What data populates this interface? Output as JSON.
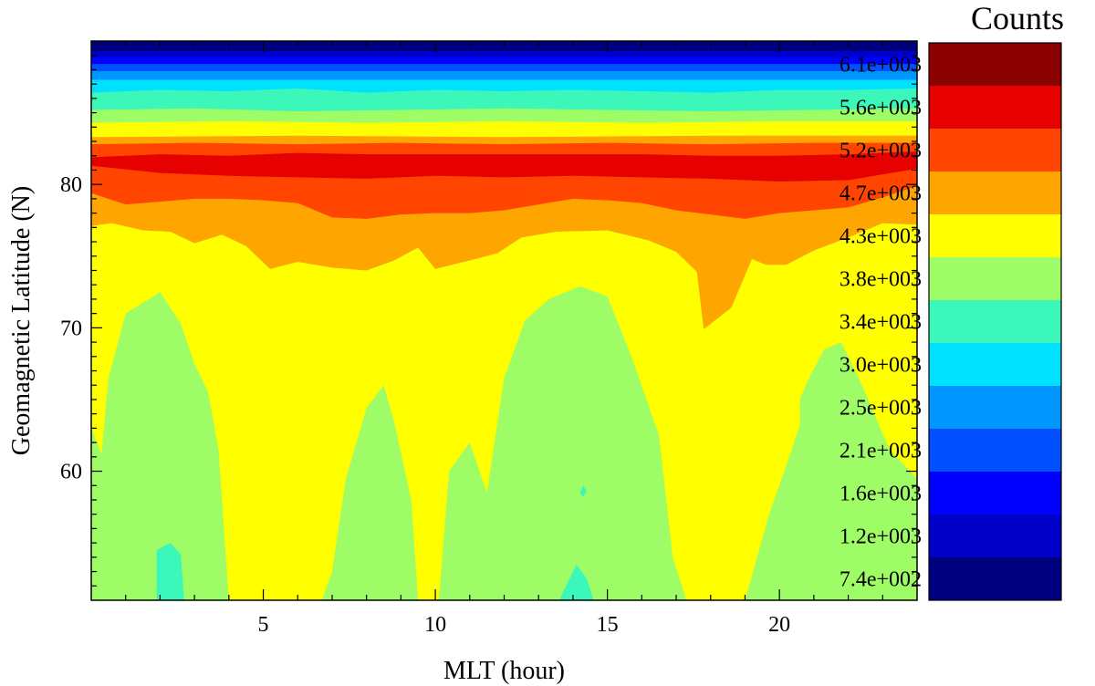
{
  "chart_data": {
    "type": "contour",
    "xlabel": "MLT (hour)",
    "ylabel": "Geomagnetic Latitude (N)",
    "xlim": [
      0,
      24
    ],
    "ylim": [
      51,
      90
    ],
    "x_ticks": [
      5,
      10,
      15,
      20
    ],
    "y_ticks": [
      60,
      70,
      80
    ],
    "grid": false,
    "colorbar": {
      "title": "Counts",
      "position": "right",
      "levels": [
        {
          "label": "7.4e+002",
          "color": "#00007f"
        },
        {
          "label": "1.2e+003",
          "color": "#0000c8"
        },
        {
          "label": "1.6e+003",
          "color": "#0000ff"
        },
        {
          "label": "2.1e+003",
          "color": "#0050ff"
        },
        {
          "label": "2.5e+003",
          "color": "#0095ff"
        },
        {
          "label": "3.0e+003",
          "color": "#00e1ff"
        },
        {
          "label": "3.4e+003",
          "color": "#3bf7b9"
        },
        {
          "label": "3.8e+003",
          "color": "#9efd66"
        },
        {
          "label": "4.3e+003",
          "color": "#ffff00"
        },
        {
          "label": "4.7e+003",
          "color": "#ffa500"
        },
        {
          "label": "5.2e+003",
          "color": "#ff4500"
        },
        {
          "label": "5.6e+003",
          "color": "#e60000"
        },
        {
          "label": "6.1e+003",
          "color": "#8b0000"
        }
      ]
    },
    "background_level": "3.8e+003",
    "bands": [
      {
        "level": "4.7e+003",
        "upper": [
          [
            0,
            89
          ],
          [
            24,
            89
          ]
        ],
        "lower": [
          [
            0,
            77.1
          ],
          [
            0.6,
            77.3
          ],
          [
            1.5,
            76.8
          ],
          [
            2.3,
            76.7
          ],
          [
            3,
            75.9
          ],
          [
            3.8,
            76.5
          ],
          [
            4.5,
            75.7
          ],
          [
            5.2,
            74.1
          ],
          [
            6,
            74.6
          ],
          [
            7,
            74.2
          ],
          [
            8,
            74
          ],
          [
            8.8,
            74.7
          ],
          [
            9.5,
            75.6
          ],
          [
            10,
            74.1
          ],
          [
            11,
            74.7
          ],
          [
            11.8,
            75.2
          ],
          [
            12.5,
            76.3
          ],
          [
            13.5,
            76.7
          ],
          [
            15,
            76.8
          ],
          [
            16.2,
            76.1
          ],
          [
            17,
            75.3
          ],
          [
            17.6,
            73.9
          ],
          [
            17.8,
            69.9
          ],
          [
            18.6,
            71.4
          ],
          [
            19.2,
            74.8
          ],
          [
            19.6,
            74.4
          ],
          [
            20.2,
            74.4
          ],
          [
            21,
            75.4
          ],
          [
            22,
            76.3
          ],
          [
            23,
            77.3
          ],
          [
            24,
            77.2
          ]
        ]
      },
      {
        "level": "5.2e+003",
        "upper": [
          [
            0,
            89
          ],
          [
            24,
            89
          ]
        ],
        "lower": [
          [
            0,
            79.4
          ],
          [
            1,
            78.6
          ],
          [
            2,
            78.8
          ],
          [
            3,
            79
          ],
          [
            4,
            79
          ],
          [
            5,
            78.9
          ],
          [
            6,
            78.7
          ],
          [
            7,
            77.7
          ],
          [
            8,
            77.6
          ],
          [
            9,
            77.9
          ],
          [
            10,
            78
          ],
          [
            11,
            78
          ],
          [
            12,
            78.2
          ],
          [
            13,
            78.6
          ],
          [
            14,
            79
          ],
          [
            15,
            78.9
          ],
          [
            16,
            78.7
          ],
          [
            17,
            78.2
          ],
          [
            18,
            77.9
          ],
          [
            19,
            77.6
          ],
          [
            20,
            78
          ],
          [
            21,
            78.2
          ],
          [
            22,
            78.4
          ],
          [
            23,
            79.1
          ],
          [
            24,
            79.9
          ]
        ]
      },
      {
        "level": "5.6e+003",
        "upper": [
          [
            0,
            89
          ],
          [
            24,
            89
          ]
        ],
        "lower": [
          [
            0,
            81.3
          ],
          [
            2,
            80.8
          ],
          [
            4,
            80.6
          ],
          [
            6,
            80.5
          ],
          [
            8,
            80.4
          ],
          [
            10,
            80.6
          ],
          [
            12,
            80.5
          ],
          [
            14,
            80.6
          ],
          [
            16,
            80.5
          ],
          [
            18,
            80.4
          ],
          [
            20,
            80.2
          ],
          [
            22,
            80.3
          ],
          [
            24,
            81.1
          ]
        ]
      },
      {
        "level": "5.2e+003",
        "upper": [
          [
            0,
            89
          ],
          [
            24,
            89
          ]
        ],
        "lower": [
          [
            0,
            81.9
          ],
          [
            2,
            82.1
          ],
          [
            4,
            82
          ],
          [
            6,
            82.2
          ],
          [
            8,
            82.1
          ],
          [
            10,
            82.1
          ],
          [
            12,
            82.1
          ],
          [
            14,
            82.1
          ],
          [
            16,
            82.1
          ],
          [
            18,
            82
          ],
          [
            20,
            82
          ],
          [
            22,
            82.1
          ],
          [
            24,
            82.3
          ]
        ]
      },
      {
        "level": "4.7e+003",
        "upper": [
          [
            0,
            89
          ],
          [
            24,
            89
          ]
        ],
        "lower": [
          [
            0,
            82.8
          ],
          [
            3,
            82.9
          ],
          [
            6,
            82.8
          ],
          [
            9,
            82.9
          ],
          [
            12,
            82.8
          ],
          [
            15,
            82.9
          ],
          [
            18,
            82.8
          ],
          [
            21,
            82.9
          ],
          [
            24,
            82.9
          ]
        ]
      },
      {
        "level": "4.3e+003",
        "upper": [
          [
            0,
            89
          ],
          [
            24,
            89
          ]
        ],
        "lower": [
          [
            0,
            83.3
          ],
          [
            6,
            83.4
          ],
          [
            12,
            83.3
          ],
          [
            18,
            83.4
          ],
          [
            24,
            83.4
          ]
        ]
      },
      {
        "level": "3.8e+003",
        "upper": [
          [
            0,
            89
          ],
          [
            24,
            89
          ]
        ],
        "lower": [
          [
            0,
            84.3
          ],
          [
            4,
            84.4
          ],
          [
            8,
            84.3
          ],
          [
            12,
            84.4
          ],
          [
            16,
            84.3
          ],
          [
            20,
            84.4
          ],
          [
            24,
            84.4
          ]
        ]
      },
      {
        "level": "3.4e+003",
        "upper": [
          [
            0,
            89
          ],
          [
            24,
            89
          ]
        ],
        "lower": [
          [
            0,
            85.2
          ],
          [
            3,
            85.3
          ],
          [
            6,
            85.1
          ],
          [
            9,
            85.2
          ],
          [
            12,
            85.3
          ],
          [
            15,
            85.2
          ],
          [
            18,
            85.1
          ],
          [
            21,
            85.2
          ],
          [
            24,
            85.3
          ]
        ]
      },
      {
        "level": "3.0e+003",
        "upper": [
          [
            0,
            89
          ],
          [
            24,
            89
          ]
        ],
        "lower": [
          [
            0,
            86.4
          ],
          [
            2,
            86.6
          ],
          [
            4,
            86.5
          ],
          [
            6,
            86.7
          ],
          [
            8,
            86.4
          ],
          [
            10,
            86.6
          ],
          [
            12,
            86.5
          ],
          [
            14,
            86.6
          ],
          [
            16,
            86.5
          ],
          [
            18,
            86.4
          ],
          [
            20,
            86.6
          ],
          [
            22,
            86.6
          ],
          [
            24,
            86.7
          ]
        ]
      },
      {
        "level": "2.5e+003",
        "upper": [
          [
            0,
            89
          ],
          [
            24,
            89
          ]
        ],
        "lower": [
          [
            0,
            87.3
          ],
          [
            6,
            87.3
          ],
          [
            12,
            87.3
          ],
          [
            18,
            87.3
          ],
          [
            24,
            87.3
          ]
        ]
      },
      {
        "level": "2.1e+003",
        "upper": [
          [
            0,
            89
          ],
          [
            24,
            89
          ]
        ],
        "lower": [
          [
            0,
            87.9
          ],
          [
            8,
            87.9
          ],
          [
            16,
            87.9
          ],
          [
            24,
            87.9
          ]
        ]
      },
      {
        "level": "1.6e+003",
        "upper": [
          [
            0,
            89
          ],
          [
            24,
            89
          ]
        ],
        "lower": [
          [
            0,
            88.4
          ],
          [
            12,
            88.4
          ],
          [
            24,
            88.4
          ]
        ]
      },
      {
        "level": "1.2e+003",
        "upper": [
          [
            0,
            89
          ],
          [
            24,
            89
          ]
        ],
        "lower": [
          [
            0,
            88.9
          ],
          [
            12,
            88.9
          ],
          [
            24,
            88.9
          ]
        ]
      },
      {
        "level": "7.4e+002",
        "upper": [
          [
            0,
            89
          ],
          [
            24,
            89
          ]
        ],
        "lower": [
          [
            0,
            89.3
          ],
          [
            12,
            89.3
          ],
          [
            24,
            89.3
          ]
        ]
      }
    ],
    "regions": [
      {
        "level": "4.3e+003",
        "points": [
          [
            0,
            77.1
          ],
          [
            0.6,
            77.3
          ],
          [
            1.5,
            76.8
          ],
          [
            2.3,
            76.7
          ],
          [
            3,
            75.9
          ],
          [
            3.8,
            76.5
          ],
          [
            4.5,
            75.7
          ],
          [
            5.2,
            74.1
          ],
          [
            6,
            74.6
          ],
          [
            7,
            74.2
          ],
          [
            8,
            74
          ],
          [
            8.8,
            74.7
          ],
          [
            9.5,
            75.6
          ],
          [
            10,
            74.1
          ],
          [
            11,
            74.7
          ],
          [
            11.8,
            75.2
          ],
          [
            12.5,
            76.3
          ],
          [
            13.5,
            76.7
          ],
          [
            15,
            76.8
          ],
          [
            16.2,
            76.1
          ],
          [
            17,
            75.3
          ],
          [
            17.6,
            73.9
          ],
          [
            17.8,
            69.9
          ],
          [
            18.6,
            71.4
          ],
          [
            19.2,
            74.8
          ],
          [
            19.6,
            74.4
          ],
          [
            20.2,
            74.4
          ],
          [
            21,
            75.4
          ],
          [
            22,
            76.3
          ],
          [
            23,
            77.3
          ],
          [
            24,
            77.2
          ],
          [
            24,
            59.5
          ],
          [
            23.2,
            61.5
          ],
          [
            22.4,
            66
          ],
          [
            21.8,
            69
          ],
          [
            21.3,
            68.5
          ],
          [
            20.9,
            66.7
          ],
          [
            20.6,
            65.1
          ],
          [
            20.6,
            63.3
          ],
          [
            20.3,
            61.1
          ],
          [
            19.7,
            57
          ],
          [
            19,
            51
          ],
          [
            17.3,
            51
          ],
          [
            16.9,
            54
          ],
          [
            16.5,
            62.5
          ],
          [
            15.7,
            68
          ],
          [
            15,
            72.2
          ],
          [
            14.2,
            72.9
          ],
          [
            13.3,
            72
          ],
          [
            12.6,
            70.5
          ],
          [
            12,
            66.5
          ],
          [
            11.5,
            58.5
          ],
          [
            11,
            62
          ],
          [
            10.4,
            60
          ],
          [
            10.1,
            51
          ],
          [
            9.5,
            51
          ],
          [
            9.3,
            58
          ],
          [
            8.8,
            63.5
          ],
          [
            8.5,
            66
          ],
          [
            8,
            64.4
          ],
          [
            7.4,
            59.5
          ],
          [
            7,
            53
          ],
          [
            6.7,
            51
          ],
          [
            4,
            51
          ],
          [
            3.7,
            61.5
          ],
          [
            3.4,
            65.5
          ],
          [
            3,
            67.5
          ],
          [
            2.6,
            70.3
          ],
          [
            2,
            72.5
          ],
          [
            1,
            71
          ],
          [
            0.5,
            66.5
          ],
          [
            0.3,
            61.2
          ],
          [
            0,
            63
          ]
        ]
      }
    ]
  }
}
